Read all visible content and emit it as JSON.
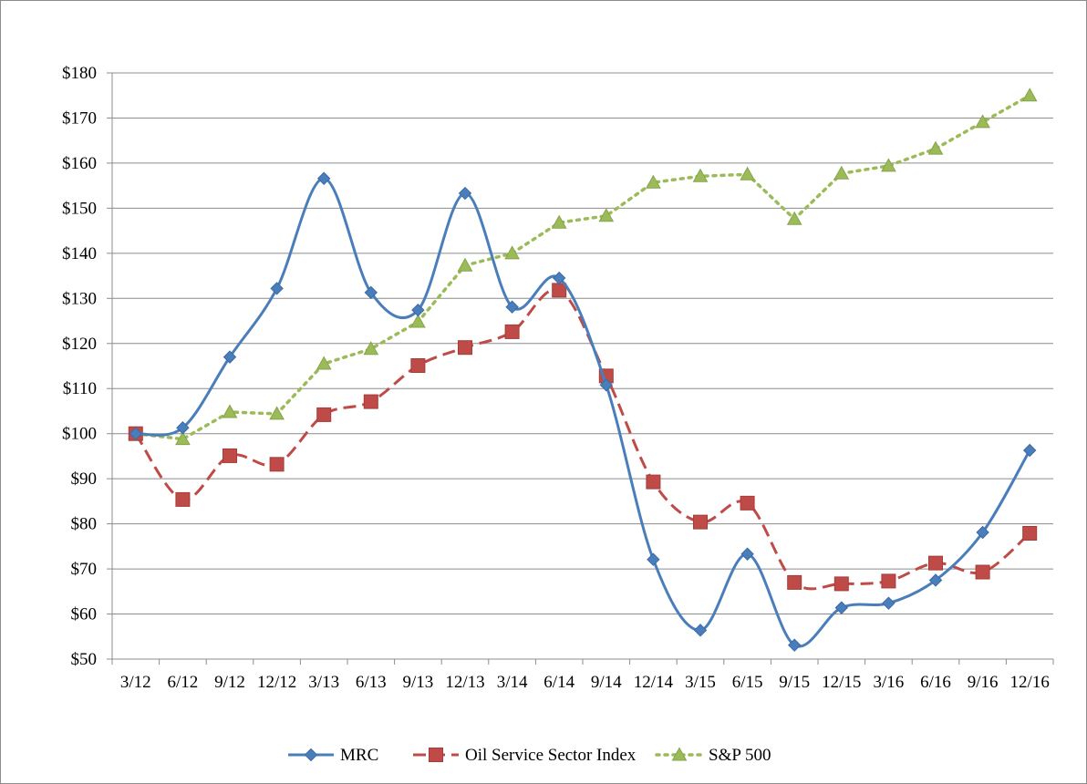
{
  "chart_data": {
    "type": "line",
    "title": "",
    "xlabel": "",
    "ylabel": "",
    "categories": [
      "3/12",
      "6/12",
      "9/12",
      "12/12",
      "3/13",
      "6/13",
      "9/13",
      "12/13",
      "3/14",
      "6/14",
      "9/14",
      "12/14",
      "3/15",
      "6/15",
      "9/15",
      "12/15",
      "3/16",
      "6/16",
      "9/16",
      "12/16"
    ],
    "ylim": [
      50,
      180
    ],
    "yticks": [
      50,
      60,
      70,
      80,
      90,
      100,
      110,
      120,
      130,
      140,
      150,
      160,
      170,
      180
    ],
    "ytick_labels": [
      "$50",
      "$60",
      "$70",
      "$80",
      "$90",
      "$100",
      "$110",
      "$120",
      "$130",
      "$140",
      "$150",
      "$160",
      "$170",
      "$180"
    ],
    "grid": true,
    "legend_position": "bottom",
    "series": [
      {
        "name": "MRC",
        "color": "#4a7ebb",
        "marker": "diamond",
        "line_style": "solid-smooth",
        "values": [
          100,
          101.3,
          117,
          132.2,
          156.6,
          131.3,
          127.4,
          153.3,
          128.1,
          134.5,
          110.8,
          72.1,
          56.4,
          73.3,
          53.1,
          61.4,
          62.4,
          67.5,
          78.1,
          96.3
        ]
      },
      {
        "name": "Oil Service Sector Index",
        "color": "#be4b48",
        "marker": "square",
        "line_style": "dashed",
        "values": [
          100,
          85.4,
          95.1,
          93.2,
          104.2,
          107.1,
          115.1,
          119.1,
          122.6,
          131.8,
          112.8,
          89.3,
          80.4,
          84.6,
          67.0,
          66.7,
          67.3,
          71.3,
          69.3,
          77.9
        ]
      },
      {
        "name": "S&P 500",
        "color": "#9bbb59",
        "marker": "triangle",
        "line_style": "dotted",
        "values": [
          100,
          98.8,
          104.8,
          104.4,
          115.5,
          118.8,
          124.8,
          137.3,
          140.0,
          146.8,
          148.3,
          155.7,
          157.1,
          157.5,
          147.6,
          157.7,
          159.4,
          163.2,
          169.1,
          175.0
        ]
      }
    ]
  }
}
